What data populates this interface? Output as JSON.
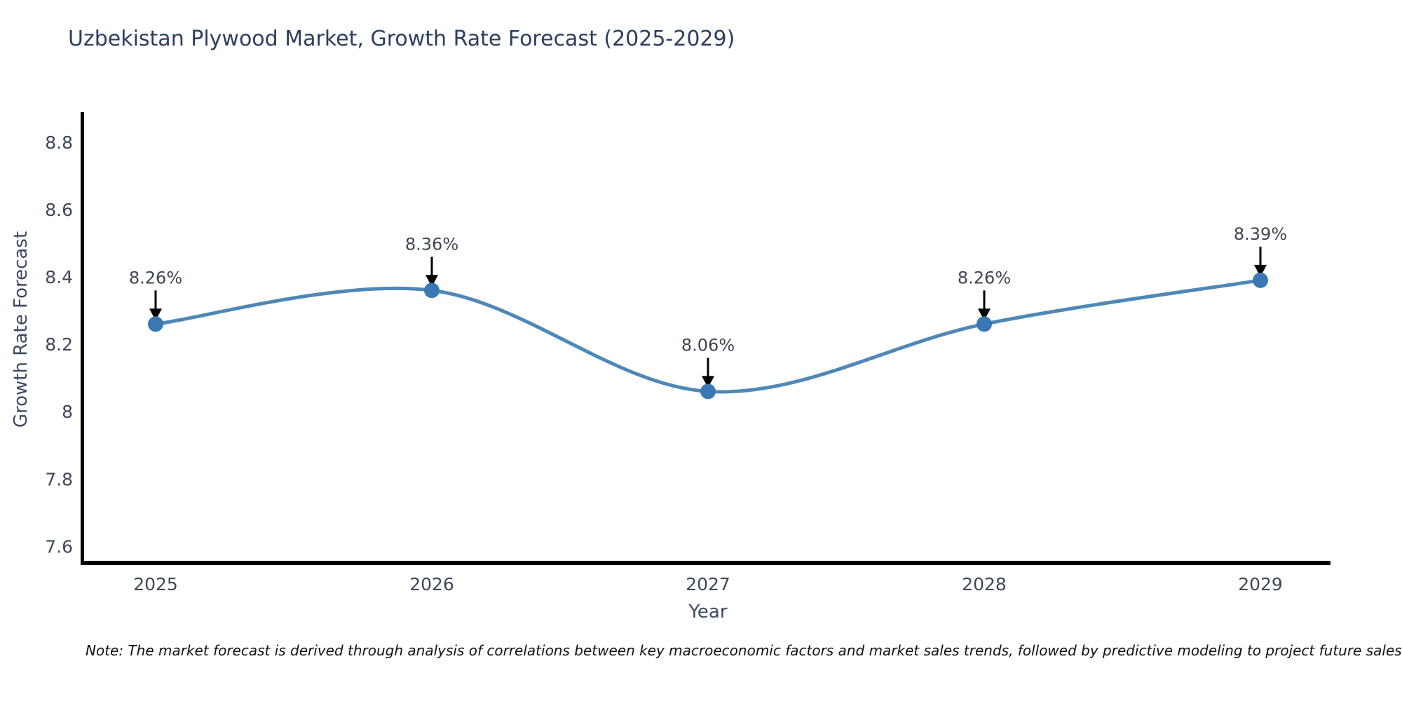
{
  "title": "Uzbekistan Plywood Market, Growth Rate Forecast (2025-2029)",
  "note": "Note: The market forecast is derived through analysis of correlations between key macroeconomic factors and market sales trends, followed by predictive modeling to project future sales",
  "chart_data": {
    "type": "line",
    "title": "Uzbekistan Plywood Market, Growth Rate Forecast (2025-2029)",
    "categories": [
      "2025",
      "2026",
      "2027",
      "2028",
      "2029"
    ],
    "series": [
      {
        "name": "Growth Rate Forecast",
        "values": [
          8.26,
          8.36,
          8.06,
          8.26,
          8.39
        ]
      }
    ],
    "point_labels": [
      "8.26%",
      "8.36%",
      "8.06%",
      "8.26%",
      "8.39%"
    ],
    "xlabel": "Year",
    "ylabel": "Growth Rate Forecast",
    "ylim": [
      7.553,
      8.885
    ],
    "yticks": [
      7.6,
      7.8,
      8,
      8.2,
      8.4,
      8.6,
      8.8
    ],
    "line_shape": "spline",
    "grid": false,
    "legend": "none",
    "markers": true,
    "annotations_arrows": true,
    "colors": {
      "line": "#4f87b7",
      "marker": "#3a78b3",
      "arrow": "#000000",
      "axis": "#000000",
      "title_text": "#2d3f5e",
      "tick_text": "#3d4858",
      "note_text": "#111111"
    }
  }
}
